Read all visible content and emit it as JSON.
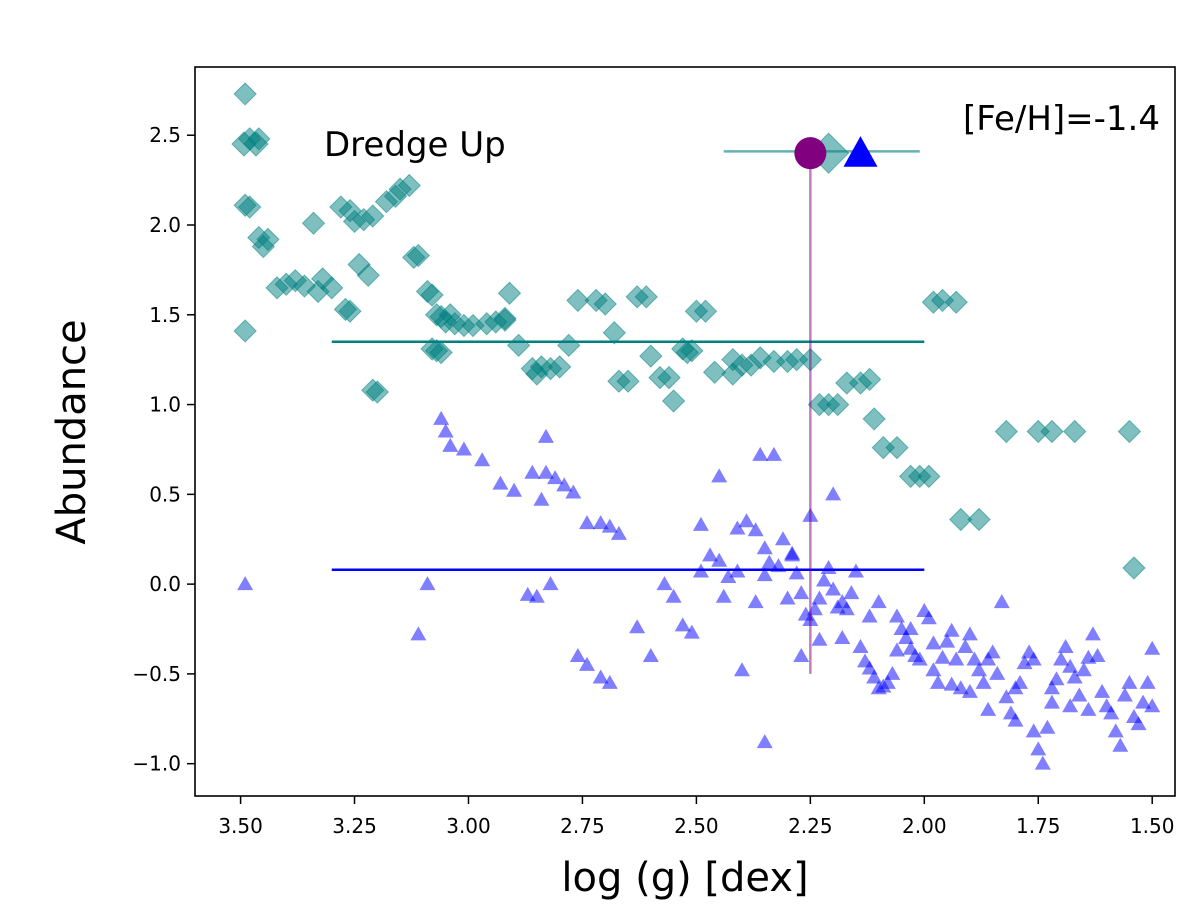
{
  "chart_data": {
    "type": "scatter",
    "xlabel": "log (g) [dex]",
    "ylabel": "Abundance",
    "xlim": [
      3.6,
      1.45
    ],
    "ylim": [
      -1.18,
      2.88
    ],
    "x_reversed": true,
    "grid": false,
    "xticks": [
      "3.50",
      "3.25",
      "3.00",
      "2.75",
      "2.50",
      "2.25",
      "2.00",
      "1.75",
      "1.50"
    ],
    "xtick_values": [
      3.5,
      3.25,
      3.0,
      2.75,
      2.5,
      2.25,
      2.0,
      1.75,
      1.5
    ],
    "yticks": [
      "−1.0",
      "−0.5",
      "0.0",
      "0.5",
      "1.0",
      "1.5",
      "2.0",
      "2.5"
    ],
    "ytick_values": [
      -1.0,
      -0.5,
      0.0,
      0.5,
      1.0,
      1.5,
      2.0,
      2.5
    ],
    "legend": {
      "location": "top-left",
      "entries": [
        {
          "label": "Dredge Up",
          "marker": "diamond",
          "color": "#008080"
        }
      ]
    },
    "annotation": "[Fe/H]=-1.4",
    "colors": {
      "teal": "#008080",
      "blue": "#0000ff",
      "purple": "#800080",
      "errorbar": "#66b2b2"
    },
    "series": [
      {
        "marker": "diamond",
        "color": "#008080",
        "points": [
          [
            3.49,
            2.73
          ],
          [
            3.48,
            2.48
          ],
          [
            3.46,
            2.48
          ],
          [
            3.49,
            2.11
          ],
          [
            3.48,
            2.1
          ],
          [
            3.46,
            1.93
          ],
          [
            3.44,
            1.92
          ],
          [
            3.45,
            1.88
          ],
          [
            3.42,
            1.65
          ],
          [
            3.4,
            1.67
          ],
          [
            3.38,
            1.69
          ],
          [
            3.36,
            1.66
          ],
          [
            3.49,
            1.41
          ],
          [
            3.33,
            1.63
          ],
          [
            3.32,
            1.7
          ],
          [
            3.3,
            1.65
          ],
          [
            3.28,
            2.1
          ],
          [
            3.26,
            2.08
          ],
          [
            3.25,
            2.02
          ],
          [
            3.23,
            2.03
          ],
          [
            3.21,
            2.05
          ],
          [
            3.24,
            1.78
          ],
          [
            3.22,
            1.72
          ],
          [
            3.27,
            1.53
          ],
          [
            3.26,
            1.52
          ],
          [
            3.21,
            1.08
          ],
          [
            3.2,
            1.07
          ],
          [
            3.18,
            2.13
          ],
          [
            3.16,
            2.16
          ],
          [
            3.15,
            2.2
          ],
          [
            3.13,
            2.22
          ],
          [
            3.12,
            1.82
          ],
          [
            3.11,
            1.83
          ],
          [
            3.09,
            1.63
          ],
          [
            3.07,
            1.5
          ],
          [
            3.06,
            1.49
          ],
          [
            3.05,
            1.46
          ],
          [
            3.03,
            1.45
          ],
          [
            3.01,
            1.44
          ],
          [
            2.99,
            1.44
          ],
          [
            2.96,
            1.45
          ],
          [
            2.94,
            1.46
          ],
          [
            2.92,
            1.47
          ],
          [
            2.91,
            1.62
          ],
          [
            2.89,
            1.33
          ],
          [
            3.08,
            1.31
          ],
          [
            3.07,
            1.3
          ],
          [
            3.06,
            1.29
          ],
          [
            3.04,
            1.5
          ],
          [
            2.86,
            1.2
          ],
          [
            2.84,
            1.21
          ],
          [
            2.82,
            1.2
          ],
          [
            2.8,
            1.21
          ],
          [
            2.78,
            1.33
          ],
          [
            2.76,
            1.58
          ],
          [
            2.72,
            1.58
          ],
          [
            2.7,
            1.56
          ],
          [
            2.68,
            1.4
          ],
          [
            2.67,
            1.13
          ],
          [
            2.65,
            1.13
          ],
          [
            2.63,
            1.6
          ],
          [
            2.61,
            1.6
          ],
          [
            2.6,
            1.27
          ],
          [
            2.58,
            1.15
          ],
          [
            2.56,
            1.15
          ],
          [
            2.55,
            1.02
          ],
          [
            2.53,
            1.31
          ],
          [
            2.51,
            1.3
          ],
          [
            2.5,
            1.52
          ],
          [
            2.48,
            1.52
          ],
          [
            2.46,
            1.18
          ],
          [
            2.42,
            1.17
          ],
          [
            2.4,
            1.22
          ],
          [
            2.38,
            1.22
          ],
          [
            2.36,
            1.26
          ],
          [
            2.33,
            1.24
          ],
          [
            2.3,
            1.24
          ],
          [
            2.28,
            1.25
          ],
          [
            2.25,
            1.25
          ],
          [
            2.23,
            1.0
          ],
          [
            2.21,
            1.0
          ],
          [
            2.19,
            1.0
          ],
          [
            2.17,
            1.12
          ],
          [
            2.14,
            1.12
          ],
          [
            2.12,
            1.14
          ],
          [
            2.11,
            0.92
          ],
          [
            2.09,
            0.76
          ],
          [
            2.06,
            0.76
          ],
          [
            2.03,
            0.6
          ],
          [
            2.01,
            0.6
          ],
          [
            1.99,
            0.6
          ],
          [
            1.98,
            1.57
          ],
          [
            1.96,
            1.58
          ],
          [
            1.93,
            1.57
          ],
          [
            1.92,
            0.36
          ],
          [
            1.88,
            0.36
          ],
          [
            1.82,
            0.85
          ],
          [
            1.75,
            0.85
          ],
          [
            1.72,
            0.85
          ],
          [
            1.67,
            0.85
          ],
          [
            1.55,
            0.85
          ],
          [
            1.54,
            0.09
          ],
          [
            2.42,
            1.25
          ],
          [
            2.52,
            1.29
          ],
          [
            2.85,
            1.17
          ],
          [
            2.92,
            1.48
          ],
          [
            3.08,
            1.61
          ],
          [
            3.34,
            2.01
          ]
        ]
      },
      {
        "marker": "triangle",
        "color": "#0000ff",
        "points": [
          [
            3.49,
            0.0
          ],
          [
            3.11,
            -0.28
          ],
          [
            3.09,
            0.0
          ],
          [
            3.06,
            0.92
          ],
          [
            3.05,
            0.85
          ],
          [
            3.04,
            0.77
          ],
          [
            3.01,
            0.75
          ],
          [
            2.97,
            0.69
          ],
          [
            2.93,
            0.56
          ],
          [
            2.9,
            0.52
          ],
          [
            2.86,
            0.62
          ],
          [
            2.83,
            0.62
          ],
          [
            2.81,
            0.59
          ],
          [
            2.79,
            0.55
          ],
          [
            2.77,
            0.51
          ],
          [
            2.74,
            0.34
          ],
          [
            2.71,
            0.34
          ],
          [
            2.69,
            0.32
          ],
          [
            2.67,
            0.28
          ],
          [
            2.84,
            0.47
          ],
          [
            2.83,
            0.82
          ],
          [
            2.82,
            0.0
          ],
          [
            2.87,
            -0.06
          ],
          [
            2.85,
            -0.07
          ],
          [
            2.76,
            -0.4
          ],
          [
            2.74,
            -0.45
          ],
          [
            2.71,
            -0.52
          ],
          [
            2.69,
            -0.55
          ],
          [
            2.63,
            -0.24
          ],
          [
            2.6,
            -0.4
          ],
          [
            2.57,
            0.0
          ],
          [
            2.55,
            -0.07
          ],
          [
            2.53,
            -0.23
          ],
          [
            2.51,
            -0.27
          ],
          [
            2.49,
            0.07
          ],
          [
            2.47,
            0.16
          ],
          [
            2.45,
            0.13
          ],
          [
            2.43,
            0.04
          ],
          [
            2.41,
            0.07
          ],
          [
            2.39,
            0.35
          ],
          [
            2.37,
            0.3
          ],
          [
            2.35,
            0.2
          ],
          [
            2.34,
            0.12
          ],
          [
            2.32,
            0.1
          ],
          [
            2.31,
            0.25
          ],
          [
            2.29,
            0.16
          ],
          [
            2.28,
            0.06
          ],
          [
            2.27,
            -0.05
          ],
          [
            2.26,
            -0.17
          ],
          [
            2.25,
            -0.2
          ],
          [
            2.24,
            -0.14
          ],
          [
            2.23,
            -0.08
          ],
          [
            2.22,
            0.02
          ],
          [
            2.21,
            0.09
          ],
          [
            2.2,
            -0.03
          ],
          [
            2.19,
            -0.13
          ],
          [
            2.18,
            -0.1
          ],
          [
            2.17,
            -0.14
          ],
          [
            2.16,
            -0.05
          ],
          [
            2.15,
            0.07
          ],
          [
            2.14,
            -0.35
          ],
          [
            2.13,
            -0.43
          ],
          [
            2.12,
            -0.47
          ],
          [
            2.11,
            -0.52
          ],
          [
            2.1,
            -0.58
          ],
          [
            2.09,
            -0.57
          ],
          [
            2.08,
            -0.55
          ],
          [
            2.07,
            -0.5
          ],
          [
            2.06,
            -0.37
          ],
          [
            2.05,
            -0.25
          ],
          [
            2.04,
            -0.3
          ],
          [
            2.03,
            -0.36
          ],
          [
            2.02,
            -0.4
          ],
          [
            2.01,
            -0.42
          ],
          [
            2.0,
            -0.15
          ],
          [
            1.99,
            -0.19
          ],
          [
            1.98,
            -0.48
          ],
          [
            1.97,
            -0.55
          ],
          [
            1.96,
            -0.41
          ],
          [
            1.95,
            -0.32
          ],
          [
            1.94,
            -0.26
          ],
          [
            1.93,
            -0.42
          ],
          [
            1.92,
            -0.58
          ],
          [
            1.91,
            -0.35
          ],
          [
            1.9,
            -0.28
          ],
          [
            1.89,
            -0.42
          ],
          [
            1.88,
            -0.48
          ],
          [
            1.87,
            -0.55
          ],
          [
            1.86,
            -0.42
          ],
          [
            1.85,
            -0.38
          ],
          [
            1.84,
            -0.5
          ],
          [
            1.83,
            -0.1
          ],
          [
            1.82,
            -0.63
          ],
          [
            1.81,
            -0.72
          ],
          [
            1.8,
            -0.76
          ],
          [
            1.79,
            -0.55
          ],
          [
            1.78,
            -0.44
          ],
          [
            1.77,
            -0.38
          ],
          [
            1.76,
            -0.82
          ],
          [
            1.75,
            -0.92
          ],
          [
            1.74,
            -1.0
          ],
          [
            1.73,
            -0.8
          ],
          [
            1.72,
            -0.66
          ],
          [
            1.71,
            -0.53
          ],
          [
            1.7,
            -0.42
          ],
          [
            1.69,
            -0.35
          ],
          [
            1.68,
            -0.46
          ],
          [
            1.67,
            -0.52
          ],
          [
            1.66,
            -0.62
          ],
          [
            1.65,
            -0.48
          ],
          [
            1.64,
            -0.41
          ],
          [
            1.63,
            -0.28
          ],
          [
            1.62,
            -0.4
          ],
          [
            1.61,
            -0.6
          ],
          [
            1.6,
            -0.68
          ],
          [
            1.59,
            -0.72
          ],
          [
            1.58,
            -0.82
          ],
          [
            1.57,
            -0.9
          ],
          [
            1.56,
            -0.62
          ],
          [
            1.55,
            -0.55
          ],
          [
            1.54,
            -0.74
          ],
          [
            1.53,
            -0.78
          ],
          [
            1.52,
            -0.66
          ],
          [
            1.51,
            -0.55
          ],
          [
            1.5,
            -0.36
          ],
          [
            1.5,
            -0.68
          ],
          [
            2.35,
            -0.88
          ],
          [
            2.4,
            -0.48
          ],
          [
            2.45,
            0.6
          ],
          [
            2.33,
            0.72
          ],
          [
            2.25,
            0.38
          ],
          [
            2.2,
            0.5
          ],
          [
            2.36,
            0.72
          ],
          [
            2.49,
            0.33
          ],
          [
            2.41,
            0.31
          ],
          [
            2.29,
            0.17
          ],
          [
            2.35,
            0.05
          ],
          [
            2.3,
            -0.08
          ],
          [
            2.23,
            -0.31
          ],
          [
            2.27,
            -0.4
          ],
          [
            2.37,
            -0.1
          ],
          [
            2.44,
            -0.07
          ],
          [
            2.18,
            -0.3
          ],
          [
            2.12,
            -0.18
          ],
          [
            2.1,
            -0.1
          ],
          [
            2.06,
            -0.18
          ],
          [
            2.03,
            -0.25
          ],
          [
            1.98,
            -0.33
          ],
          [
            1.94,
            -0.56
          ],
          [
            1.9,
            -0.6
          ],
          [
            1.86,
            -0.7
          ],
          [
            1.8,
            -0.58
          ],
          [
            1.76,
            -0.42
          ],
          [
            1.72,
            -0.58
          ],
          [
            1.68,
            -0.68
          ],
          [
            1.64,
            -0.7
          ]
        ]
      },
      {
        "name": "[Fe/H]=-1.4",
        "marker": "diamond",
        "color": "#008080",
        "label_note": "teal mean line",
        "points": [
          [
            3.3,
            1.35
          ],
          [
            2.0,
            1.35
          ]
        ]
      },
      {
        "marker": "triangle",
        "color": "#0000ff",
        "label_note": "blue mean line",
        "points": [
          [
            3.3,
            0.08
          ],
          [
            2.0,
            0.08
          ]
        ]
      }
    ],
    "highlight": {
      "purple_point": [
        2.25,
        2.4
      ],
      "purple_line_x": 2.25,
      "purple_line_y": [
        -0.5,
        2.4
      ],
      "teal_big_diamond": [
        2.21,
        2.4
      ],
      "blue_big_triangle": [
        2.14,
        2.4
      ],
      "errorbar_x": [
        2.44,
        2.01
      ],
      "errorbar_y": 2.41
    }
  }
}
